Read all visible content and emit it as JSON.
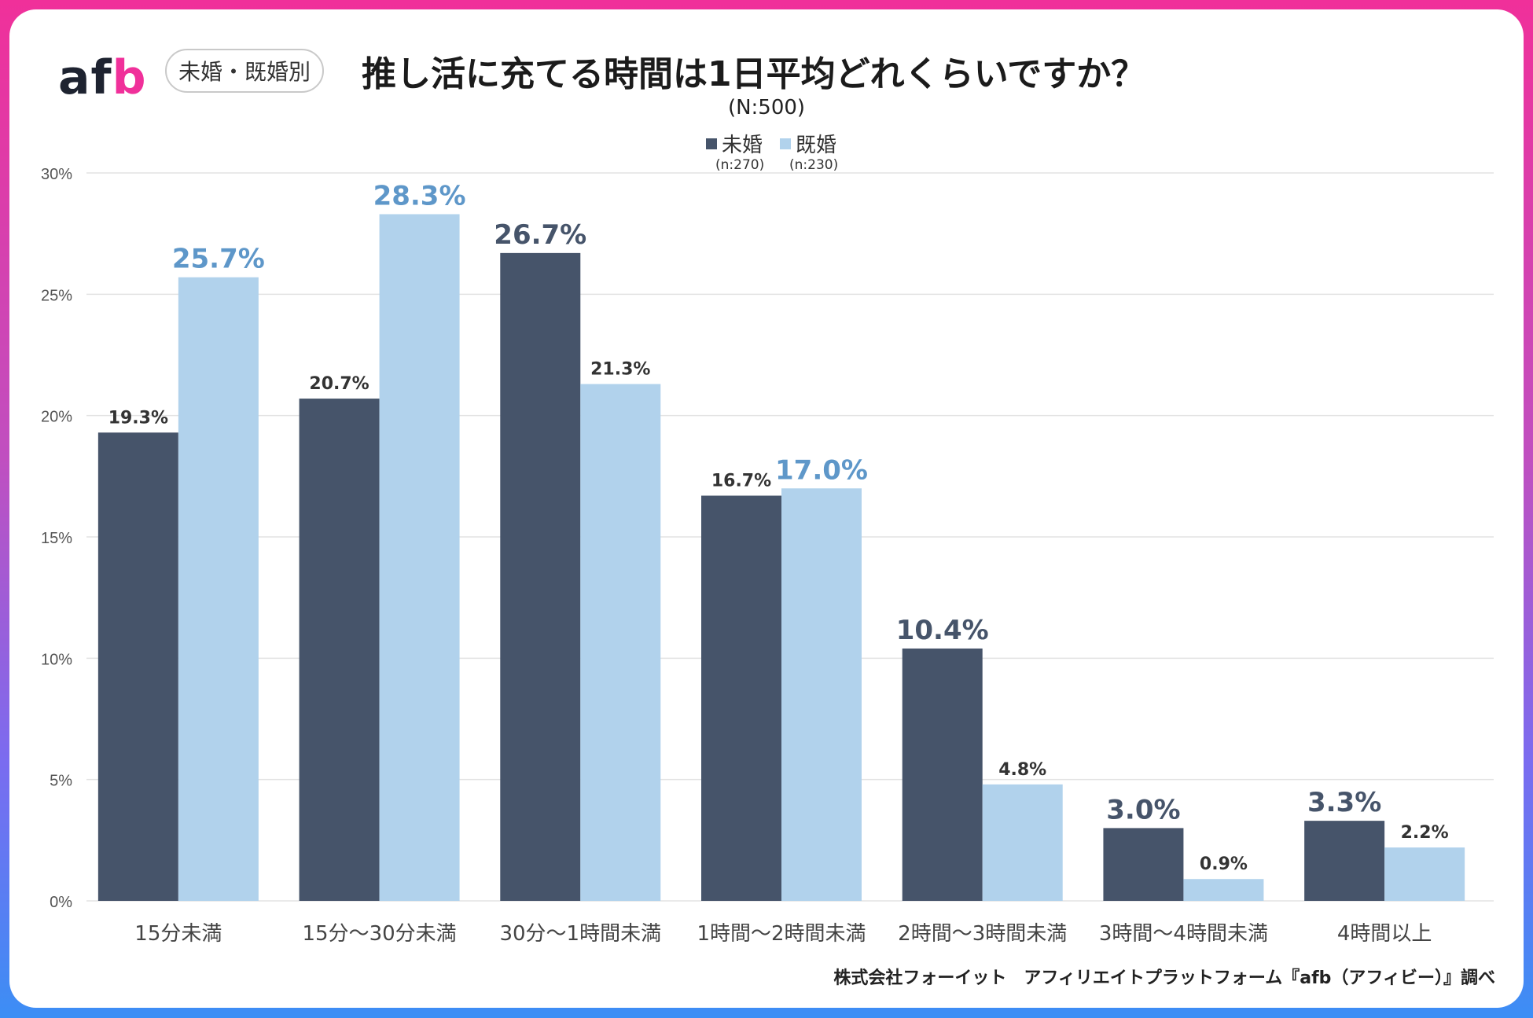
{
  "header": {
    "logo_main": "af",
    "logo_accent": "b",
    "badge": "未婚・既婚別",
    "title": "推し活に充てる時間は1日平均どれくらいですか？",
    "n_total": "(N:500)"
  },
  "legend": [
    {
      "name": "未婚",
      "n": "(n:270)",
      "color": "#46546a"
    },
    {
      "name": "既婚",
      "n": "(n:230)",
      "color": "#b1d2ec"
    }
  ],
  "footer": "株式会社フォーイット　アフィリエイトプラットフォーム『afb（アフィビー）』調べ",
  "chart_data": {
    "type": "bar",
    "title": "推し活に充てる時間は1日平均どれくらいですか？",
    "categories": [
      "15分未満",
      "15分～30分未満",
      "30分～1時間未満",
      "1時間～2時間未満",
      "2時間～3時間未満",
      "3時間～4時間未満",
      "4時間以上"
    ],
    "series": [
      {
        "name": "未婚",
        "values": [
          19.3,
          20.7,
          26.7,
          16.7,
          10.4,
          3.0,
          3.3
        ],
        "color": "#46546a",
        "highlight_color": "#46546a"
      },
      {
        "name": "既婚",
        "values": [
          25.7,
          28.3,
          21.3,
          17.0,
          4.8,
          0.9,
          2.2
        ],
        "color": "#b1d2ec",
        "highlight_color": "#5e97c9"
      }
    ],
    "data_labels": [
      [
        "19.3%",
        "20.7%",
        "26.7%",
        "16.7%",
        "10.4%",
        "3.0%",
        "3.3%"
      ],
      [
        "25.7%",
        "28.3%",
        "21.3%",
        "17.0%",
        "4.8%",
        "0.9%",
        "2.2%"
      ]
    ],
    "yticks": [
      0,
      5,
      10,
      15,
      20,
      25,
      30
    ],
    "ytick_labels": [
      "0%",
      "5%",
      "10%",
      "15%",
      "20%",
      "25%",
      "30%"
    ],
    "ylim": [
      0,
      30
    ],
    "grid": true,
    "legend_position": "top-center",
    "note": "Larger bold label marks the higher value in each category"
  }
}
